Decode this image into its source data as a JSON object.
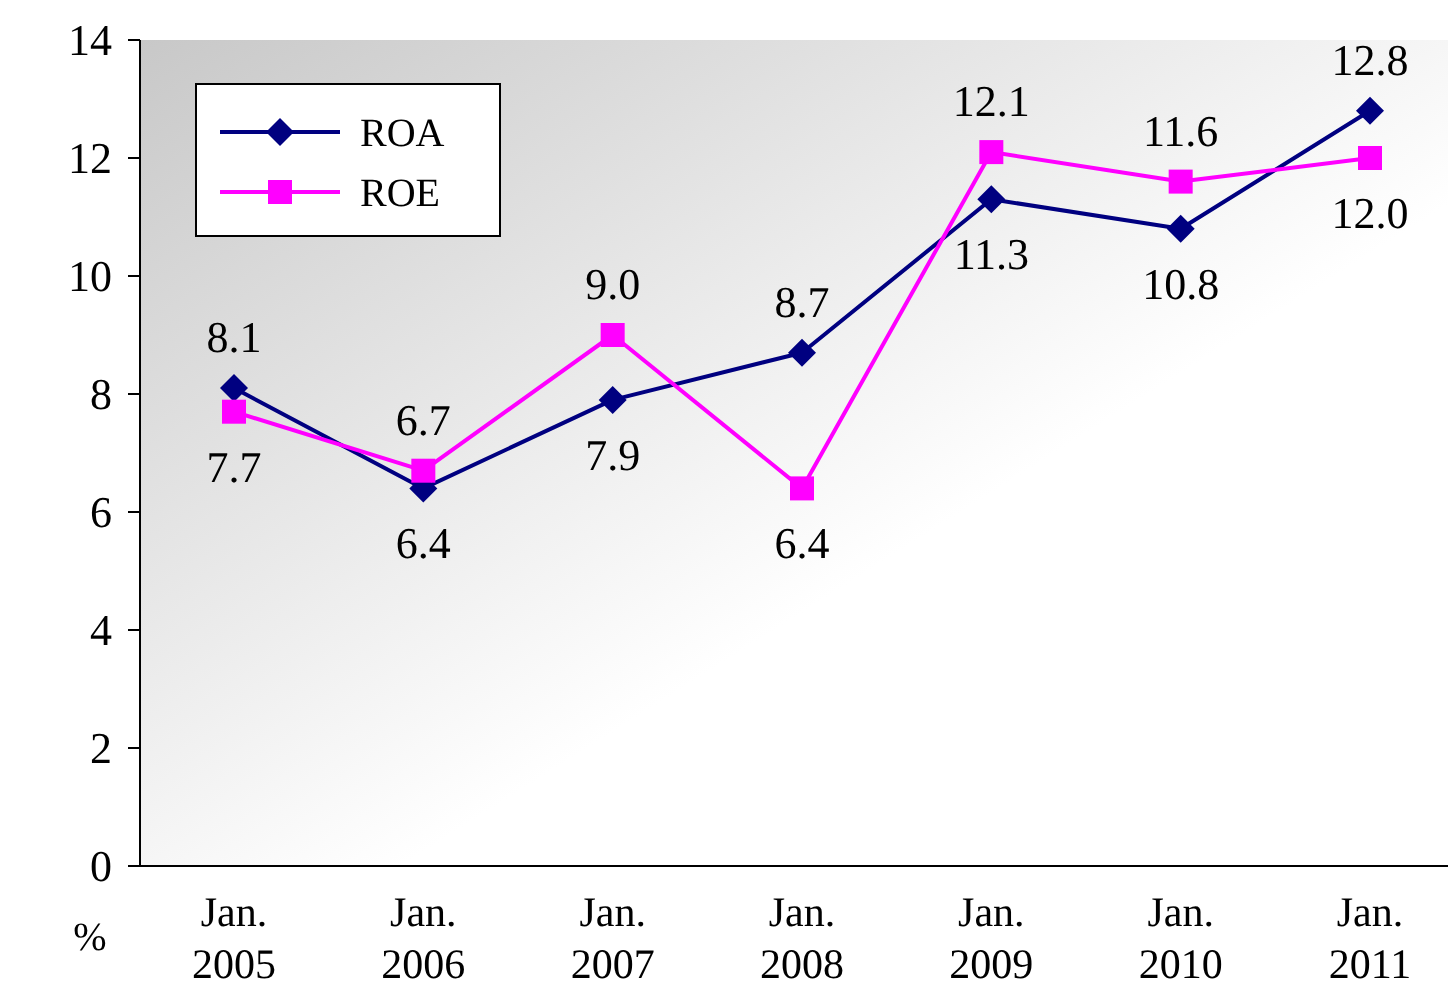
{
  "chart_data": {
    "type": "line",
    "ylabel": "%",
    "categories": [
      "Jan. 2005",
      "Jan. 2006",
      "Jan. 2007",
      "Jan. 2008",
      "Jan. 2009",
      "Jan. 2010",
      "Jan. 2011"
    ],
    "series": [
      {
        "name": "ROA",
        "color": "#000080",
        "marker": "diamond",
        "values": [
          8.1,
          6.4,
          7.9,
          8.7,
          11.3,
          10.8,
          12.8
        ],
        "value_labels": [
          "8.1",
          "6.4",
          "7.9",
          "8.7",
          "11.3",
          "10.8",
          "12.8"
        ]
      },
      {
        "name": "ROE",
        "color": "#ff00ff",
        "marker": "square",
        "values": [
          7.7,
          6.7,
          9.0,
          6.4,
          12.1,
          11.6,
          12.0
        ],
        "value_labels": [
          "7.7",
          "6.7",
          "9.0",
          "6.4",
          "12.1",
          "11.6",
          "12.0"
        ]
      }
    ],
    "ylim": [
      0,
      14
    ],
    "yticks": [
      0,
      2,
      4,
      6,
      8,
      10,
      12,
      14
    ],
    "grid": false,
    "legend": "top left"
  }
}
